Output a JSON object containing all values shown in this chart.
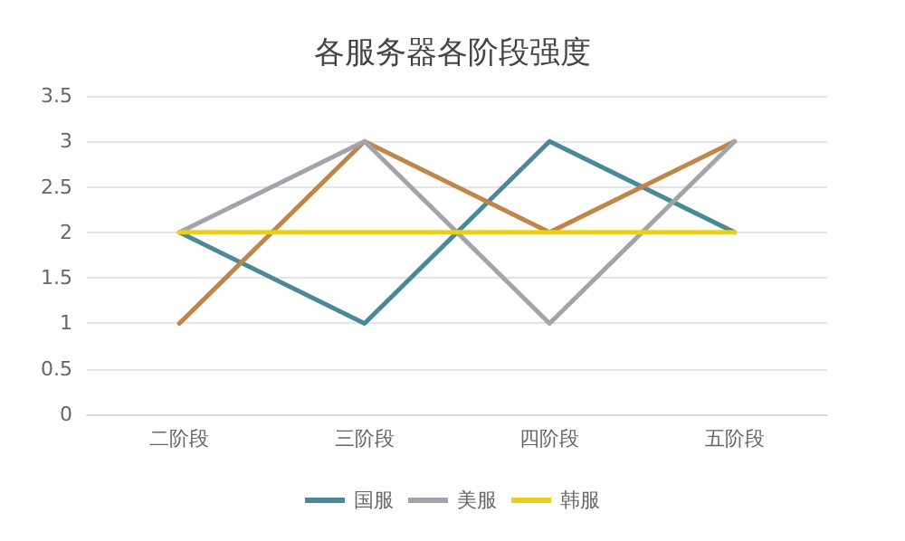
{
  "chart_data": {
    "type": "line",
    "title": "各服务器各阶段强度",
    "categories": [
      "二阶段",
      "三阶段",
      "四阶段",
      "五阶段"
    ],
    "series": [
      {
        "name": "国服",
        "color": "#4a8a98",
        "values": [
          2,
          1,
          3,
          2
        ]
      },
      {
        "color": "#c0854a",
        "values": [
          1,
          3,
          2,
          3
        ]
      },
      {
        "name": "美服",
        "color": "#a3a3ab",
        "values": [
          2,
          3,
          1,
          3
        ]
      },
      {
        "name": "韩服",
        "color": "#e8cf1e",
        "values": [
          2,
          2,
          2,
          2
        ]
      }
    ],
    "ylim": [
      0,
      3.5
    ],
    "yticks": [
      0,
      0.5,
      1,
      1.5,
      2,
      2.5,
      3,
      3.5
    ],
    "grid": "y",
    "legend": "bottom",
    "marker": "none",
    "line_style": "solid"
  }
}
